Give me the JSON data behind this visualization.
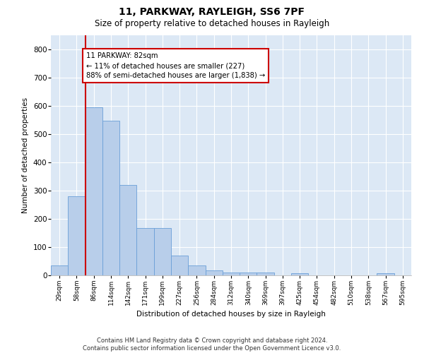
{
  "title1": "11, PARKWAY, RAYLEIGH, SS6 7PF",
  "title2": "Size of property relative to detached houses in Rayleigh",
  "xlabel": "Distribution of detached houses by size in Rayleigh",
  "ylabel": "Number of detached properties",
  "categories": [
    "29sqm",
    "58sqm",
    "86sqm",
    "114sqm",
    "142sqm",
    "171sqm",
    "199sqm",
    "227sqm",
    "256sqm",
    "284sqm",
    "312sqm",
    "340sqm",
    "369sqm",
    "397sqm",
    "425sqm",
    "454sqm",
    "482sqm",
    "510sqm",
    "538sqm",
    "567sqm",
    "595sqm"
  ],
  "values": [
    35,
    280,
    595,
    548,
    320,
    168,
    168,
    70,
    35,
    18,
    10,
    10,
    10,
    0,
    7,
    0,
    0,
    0,
    0,
    7,
    0
  ],
  "bar_color": "#b8ceea",
  "bar_edge_color": "#6a9fd8",
  "vline_x": 1.5,
  "vline_color": "#cc0000",
  "annotation_line1": "11 PARKWAY: 82sqm",
  "annotation_line2": "← 11% of detached houses are smaller (227)",
  "annotation_line3": "88% of semi-detached houses are larger (1,838) →",
  "annotation_box_color": "white",
  "annotation_box_edge": "#cc0000",
  "footer": "Contains HM Land Registry data © Crown copyright and database right 2024.\nContains public sector information licensed under the Open Government Licence v3.0.",
  "ylim": [
    0,
    850
  ],
  "yticks": [
    0,
    100,
    200,
    300,
    400,
    500,
    600,
    700,
    800
  ],
  "bg_color": "#dce8f5",
  "fig_bg_color": "#ffffff",
  "title1_fontsize": 10,
  "title2_fontsize": 8.5
}
